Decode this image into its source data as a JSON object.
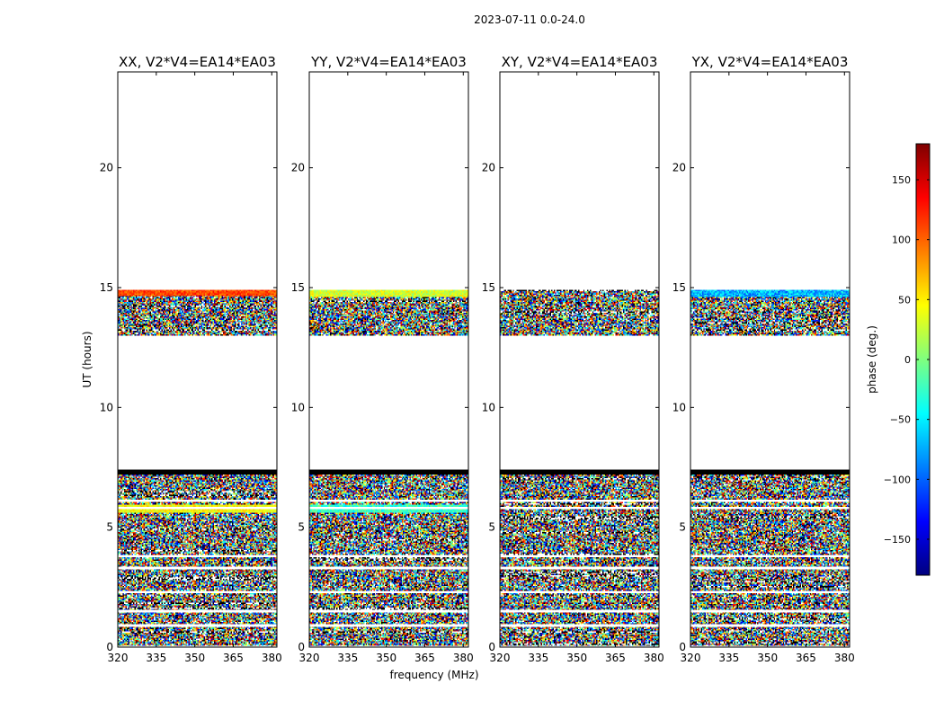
{
  "chart_data": {
    "type": "heatmap",
    "suptitle": "2023-07-11 0.0-24.0",
    "xlabel": "frequency (MHz)",
    "ylabel": "UT (hours)",
    "xlim": [
      320,
      382
    ],
    "ylim": [
      0,
      24
    ],
    "xticks": [
      320,
      335,
      350,
      365,
      380
    ],
    "yticks": [
      0,
      5,
      10,
      15,
      20
    ],
    "colorbar": {
      "label": "phase (deg.)",
      "range": [
        -180,
        180
      ],
      "ticks": [
        -150,
        -100,
        -50,
        0,
        50,
        100,
        150
      ],
      "colormap": [
        "#00007f",
        "#0000ff",
        "#007fff",
        "#00ffff",
        "#7fff7f",
        "#ffff00",
        "#ff7f00",
        "#ff0000",
        "#7f0000"
      ]
    },
    "row_boundaries_hours": [
      0,
      0.9,
      1.5,
      2.3,
      3.3,
      3.8,
      5.8,
      6.1,
      7.3
    ],
    "flagged_band_hours": [
      7.0,
      7.45
    ],
    "panels": [
      {
        "title": "XX, V2*V4=EA14*EA03",
        "scan_blocks": [
          {
            "ut_start": 0.0,
            "ut_end": 5.6,
            "mean_phase": 0,
            "spread": 180
          },
          {
            "ut_start": 5.6,
            "ut_end": 5.95,
            "mean_phase": 45,
            "spread": 25
          },
          {
            "ut_start": 5.95,
            "ut_end": 7.4,
            "mean_phase": 0,
            "spread": 180
          },
          {
            "ut_start": 13.0,
            "ut_end": 14.65,
            "mean_phase": 0,
            "spread": 180
          },
          {
            "ut_start": 14.65,
            "ut_end": 14.9,
            "mean_phase": 110,
            "spread": 25
          }
        ]
      },
      {
        "title": "YY, V2*V4=EA14*EA03",
        "scan_blocks": [
          {
            "ut_start": 0.0,
            "ut_end": 5.6,
            "mean_phase": 0,
            "spread": 180
          },
          {
            "ut_start": 5.6,
            "ut_end": 5.95,
            "mean_phase": -25,
            "spread": 30
          },
          {
            "ut_start": 5.95,
            "ut_end": 7.4,
            "mean_phase": 0,
            "spread": 180
          },
          {
            "ut_start": 13.0,
            "ut_end": 14.6,
            "mean_phase": 0,
            "spread": 180
          },
          {
            "ut_start": 14.6,
            "ut_end": 14.9,
            "mean_phase": 30,
            "spread": 30
          }
        ]
      },
      {
        "title": "XY, V2*V4=EA14*EA03",
        "scan_blocks": [
          {
            "ut_start": 0.0,
            "ut_end": 7.4,
            "mean_phase": 0,
            "spread": 180
          },
          {
            "ut_start": 13.0,
            "ut_end": 14.9,
            "mean_phase": 0,
            "spread": 180
          }
        ]
      },
      {
        "title": "YX, V2*V4=EA14*EA03",
        "scan_blocks": [
          {
            "ut_start": 0.0,
            "ut_end": 7.4,
            "mean_phase": 0,
            "spread": 180
          },
          {
            "ut_start": 13.0,
            "ut_end": 14.6,
            "mean_phase": 0,
            "spread": 180
          },
          {
            "ut_start": 14.6,
            "ut_end": 14.9,
            "mean_phase": -70,
            "spread": 40
          }
        ]
      }
    ]
  }
}
